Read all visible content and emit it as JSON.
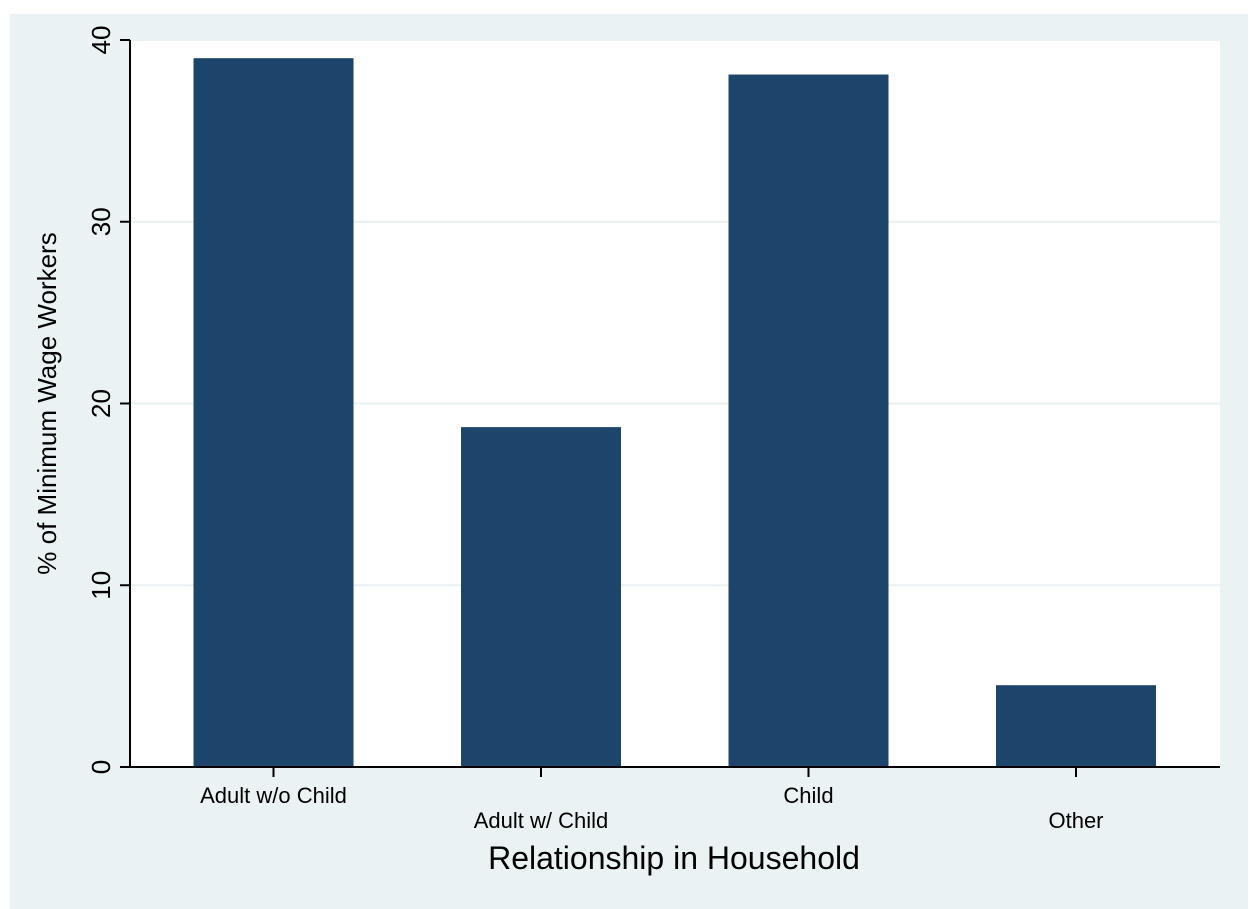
{
  "chart_data": {
    "type": "bar",
    "title": "",
    "xlabel": "Relationship in Household",
    "ylabel": "% of Minimum Wage Workers",
    "categories": [
      "Adult w/o Child",
      "Adult w/ Child",
      "Child",
      "Other"
    ],
    "values": [
      39.0,
      18.7,
      38.1,
      4.5
    ],
    "ylim": [
      0,
      40
    ],
    "yticks": [
      0,
      10,
      20,
      30,
      40
    ],
    "grid": true,
    "legend": "none",
    "colors": {
      "bar": "#1d456c",
      "figure_background": "#eaf2f3",
      "plot_background": "#ffffff",
      "grid": "#eaf2f3",
      "axis": "#000000"
    }
  }
}
